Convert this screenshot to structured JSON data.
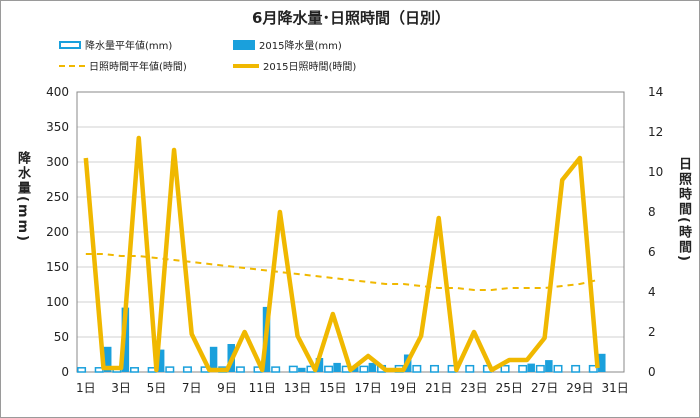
{
  "title": "6月降水量･日照時間（日別）",
  "legend": {
    "rain_avg": "降水量平年値(mm)",
    "rain_2015": "2015降水量(mm)",
    "sun_avg": "日照時間平年値(時間)",
    "sun_2015": "2015日照時間(時間)"
  },
  "y_left_title": "降水量(mm)",
  "y_right_title": "日照時間(時間)",
  "colors": {
    "bar": "#1aa0dc",
    "line": "#f0b800",
    "grid": "#d0d0d0"
  },
  "chart_data": {
    "type": "bar",
    "categories": [
      "1日",
      "2日",
      "3日",
      "4日",
      "5日",
      "6日",
      "7日",
      "8日",
      "9日",
      "10日",
      "11日",
      "12日",
      "13日",
      "14日",
      "15日",
      "16日",
      "17日",
      "18日",
      "19日",
      "20日",
      "21日",
      "22日",
      "23日",
      "24日",
      "25日",
      "26日",
      "27日",
      "28日",
      "29日",
      "30日"
    ],
    "x_tick_labels": [
      "1日",
      "3日",
      "5日",
      "7日",
      "9日",
      "11日",
      "13日",
      "15日",
      "17日",
      "19日",
      "21日",
      "23日",
      "25日",
      "27日",
      "29日",
      "31日"
    ],
    "ylim_left": [
      0,
      400
    ],
    "y_left_ticks": [
      0,
      50,
      100,
      150,
      200,
      250,
      300,
      350,
      400
    ],
    "ylim_right": [
      0,
      14
    ],
    "y_right_ticks": [
      0,
      2,
      4,
      6,
      8,
      10,
      12,
      14
    ],
    "series": [
      {
        "name": "降水量平年値(mm)",
        "axis": "left",
        "type": "bar-outline",
        "values": [
          6,
          6,
          6,
          6,
          6,
          7,
          7,
          7,
          7,
          7,
          7,
          7,
          8,
          8,
          8,
          8,
          8,
          9,
          9,
          9,
          9,
          9,
          9,
          9,
          9,
          9,
          9,
          9,
          9,
          9
        ]
      },
      {
        "name": "2015降水量(mm)",
        "axis": "left",
        "type": "bar",
        "values": [
          0,
          36,
          92,
          0,
          32,
          0,
          0,
          36,
          40,
          0,
          93,
          0,
          6,
          20,
          13,
          8,
          13,
          0,
          25,
          0,
          0,
          0,
          0,
          0,
          0,
          12,
          17,
          0,
          0,
          26
        ]
      },
      {
        "name": "日照時間平年値(時間)",
        "axis": "right",
        "type": "dashed-line",
        "values": [
          5.9,
          5.9,
          5.8,
          5.8,
          5.7,
          5.6,
          5.5,
          5.4,
          5.3,
          5.2,
          5.1,
          5.0,
          4.9,
          4.8,
          4.7,
          4.6,
          4.5,
          4.4,
          4.4,
          4.3,
          4.2,
          4.2,
          4.1,
          4.1,
          4.2,
          4.2,
          4.2,
          4.3,
          4.4,
          4.6
        ]
      },
      {
        "name": "2015日照時間(時間)",
        "axis": "right",
        "type": "line",
        "values": [
          10.7,
          0.2,
          0.2,
          11.7,
          0.1,
          11.1,
          1.9,
          0.1,
          0.1,
          2.0,
          0.1,
          8.0,
          1.8,
          0.1,
          2.9,
          0.1,
          0.8,
          0.1,
          0.1,
          1.8,
          7.7,
          0.1,
          2.0,
          0.1,
          0.6,
          0.6,
          1.7,
          9.6,
          10.7,
          0.2
        ]
      }
    ]
  }
}
